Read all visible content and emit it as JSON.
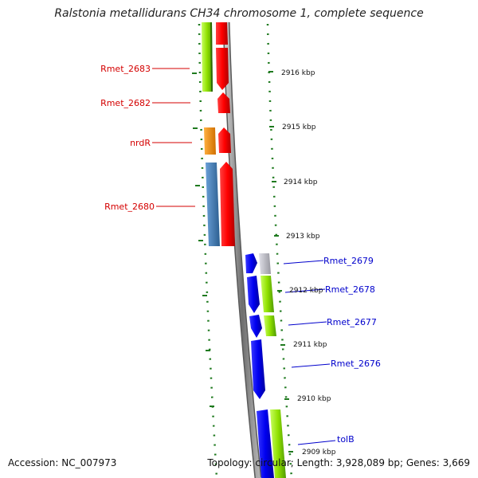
{
  "title": "Ralstonia metallidurans CH34 chromosome 1, complete sequence",
  "footer": {
    "accession": "Accession: NC_007973",
    "topology": "Topology: circular; Length: 3,928,089 bp; Genes: 3,669"
  },
  "colors": {
    "backbone": "#808080",
    "tick": "#1f7a1f",
    "forward_label": "#d40000",
    "reverse_label": "#0000cc"
  },
  "scale_labels": [
    "2916 kbp",
    "2915 kbp",
    "2914 kbp",
    "2913 kbp",
    "2912 kbp",
    "2911 kbp",
    "2910 kbp",
    "2909 kbp"
  ],
  "genes_forward": [
    {
      "name": "Rmet_2683",
      "color": "#e60000",
      "orf_color": "#8ee000"
    },
    {
      "name": "Rmet_2682",
      "color": "#e60000",
      "orf_color": ""
    },
    {
      "name": "nrdR",
      "color": "#e60000",
      "orf_color": "#f08c00"
    },
    {
      "name": "Rmet_2680",
      "color": "#e60000",
      "orf_color": "#3f7fb8"
    }
  ],
  "genes_reverse": [
    {
      "name": "Rmet_2679",
      "color": "#0000e6",
      "orf_color": "#c0c0c8"
    },
    {
      "name": "Rmet_2678",
      "color": "#0000e6",
      "orf_color": "#8ee000"
    },
    {
      "name": "Rmet_2677",
      "color": "#0000e6",
      "orf_color": "#8ee000"
    },
    {
      "name": "Rmet_2676",
      "color": "#0000e6",
      "orf_color": ""
    },
    {
      "name": "tolB",
      "color": "#0000e6",
      "orf_color": "#8ee000"
    }
  ]
}
